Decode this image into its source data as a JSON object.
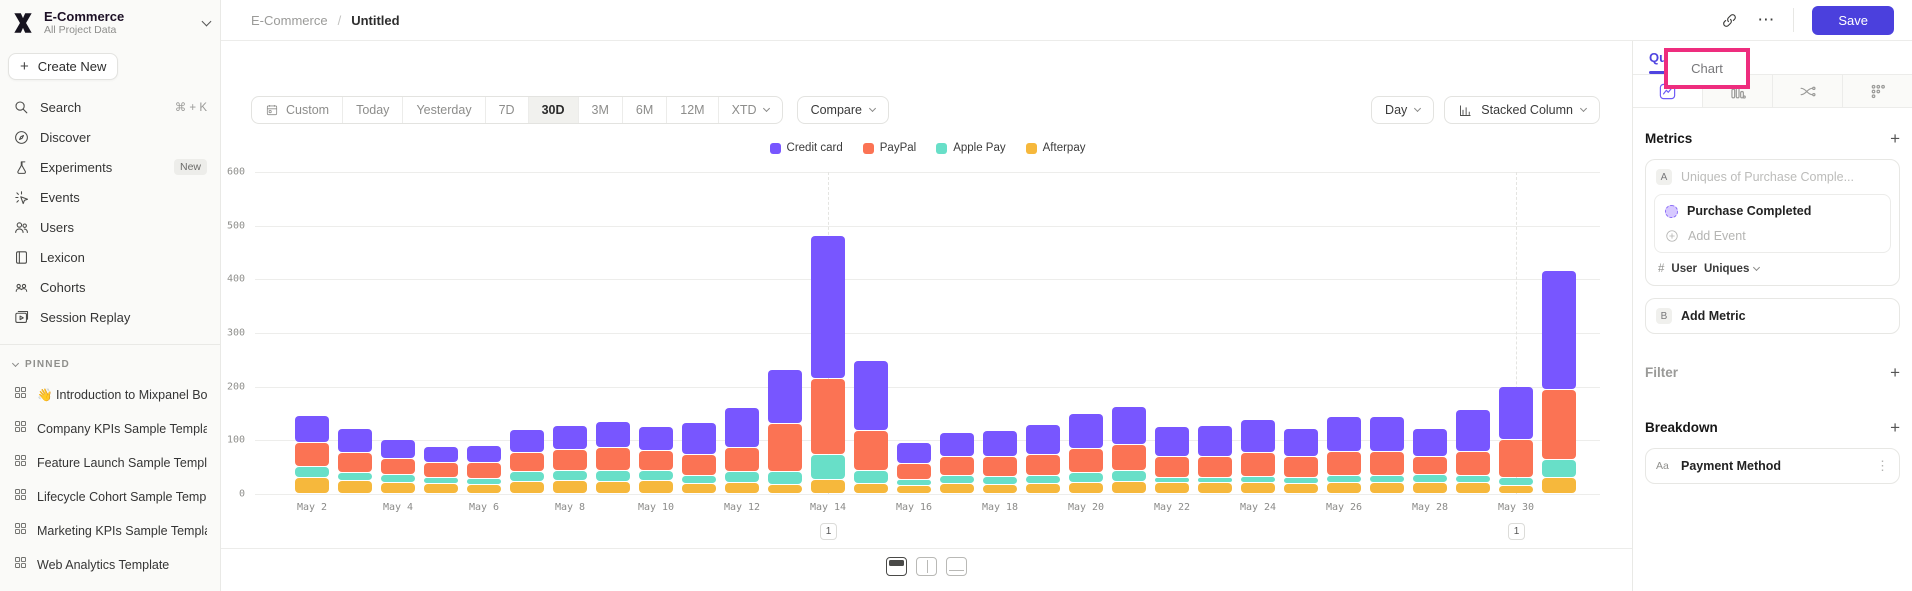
{
  "sidebar": {
    "project_name": "E-Commerce",
    "project_subtitle": "All Project Data",
    "create_new_label": "Create New",
    "nav": [
      {
        "label": "Search",
        "icon": "search-icon",
        "shortcut": "⌘ + K"
      },
      {
        "label": "Discover",
        "icon": "discover-icon"
      },
      {
        "label": "Experiments",
        "icon": "flask-icon",
        "badge": "New"
      },
      {
        "label": "Events",
        "icon": "events-spark-icon"
      },
      {
        "label": "Users",
        "icon": "users-icon"
      },
      {
        "label": "Lexicon",
        "icon": "book-icon"
      },
      {
        "label": "Cohorts",
        "icon": "cohorts-icon"
      },
      {
        "label": "Session Replay",
        "icon": "session-replay-icon"
      }
    ],
    "pinned_label": "PINNED",
    "pinned": [
      "👋 Introduction to Mixpanel Bo",
      "Company KPIs Sample Templat",
      "Feature Launch Sample Templa",
      "Lifecycle Cohort Sample Temp",
      "Marketing KPIs Sample Templat",
      "Web Analytics Template"
    ]
  },
  "header": {
    "breadcrumb_project": "E-Commerce",
    "breadcrumb_separator": "/",
    "breadcrumb_page": "Untitled",
    "save_label": "Save",
    "more_label": "⋯"
  },
  "toolbar": {
    "date_ranges": [
      "Custom",
      "Today",
      "Yesterday",
      "7D",
      "30D",
      "3M",
      "6M",
      "12M",
      "XTD"
    ],
    "active_range": "30D",
    "compare_label": "Compare",
    "granularity_label": "Day",
    "chart_type_label": "Stacked Column"
  },
  "right_panel": {
    "tabs": [
      "Query",
      "Chart"
    ],
    "active_tab": "Query",
    "metrics_title": "Metrics",
    "metric_a_badge": "A",
    "metric_a_placeholder": "Uniques of Purchase Comple...",
    "event_name": "Purchase Completed",
    "add_event_label": "Add Event",
    "agg_hash": "#",
    "agg_entity": "User",
    "agg_type": "Uniques",
    "metric_b_badge": "B",
    "add_metric_label": "Add Metric",
    "filter_title": "Filter",
    "breakdown_title": "Breakdown",
    "breakdown_badge": "Aa",
    "breakdown_property": "Payment Method",
    "accent_color": "#4f44e0",
    "annotation_color": "#ee2d7e"
  },
  "chart_data": {
    "type": "bar",
    "stacked": true,
    "legend_position": "top",
    "grid": true,
    "ylim": [
      0,
      600
    ],
    "yticks": [
      0,
      100,
      200,
      300,
      400,
      500,
      600
    ],
    "categories": [
      "May 2",
      "May 3",
      "May 4",
      "May 5",
      "May 6",
      "May 7",
      "May 8",
      "May 9",
      "May 10",
      "May 11",
      "May 12",
      "May 13",
      "May 14",
      "May 15",
      "May 16",
      "May 17",
      "May 18",
      "May 19",
      "May 20",
      "May 21",
      "May 22",
      "May 23",
      "May 24",
      "May 25",
      "May 26",
      "May 27",
      "May 28",
      "May 29",
      "May 30",
      "May 31"
    ],
    "x_tick_labels": [
      "May 2",
      "May 4",
      "May 6",
      "May 8",
      "May 10",
      "May 12",
      "May 14",
      "May 16",
      "May 18",
      "May 20",
      "May 22",
      "May 24",
      "May 26",
      "May 28",
      "May 30"
    ],
    "series": [
      {
        "name": "Credit card",
        "color": "#7856ff",
        "values": [
          50,
          45,
          35,
          30,
          32,
          42,
          45,
          48,
          44,
          60,
          75,
          100,
          266,
          130,
          40,
          45,
          48,
          55,
          65,
          70,
          55,
          58,
          62,
          52,
          65,
          66,
          52,
          78,
          99,
          221
        ]
      },
      {
        "name": "PayPal",
        "color": "#fb7354",
        "values": [
          45,
          38,
          30,
          28,
          30,
          35,
          40,
          42,
          38,
          40,
          45,
          90,
          141,
          75,
          30,
          35,
          38,
          40,
          45,
          48,
          40,
          40,
          45,
          40,
          45,
          44,
          33,
          45,
          70,
          131
        ]
      },
      {
        "name": "Apple Pay",
        "color": "#68dfc8",
        "values": [
          20,
          15,
          15,
          12,
          12,
          18,
          18,
          20,
          18,
          15,
          20,
          25,
          47,
          25,
          12,
          15,
          15,
          15,
          18,
          20,
          10,
          10,
          12,
          12,
          13,
          13,
          14,
          13,
          15,
          34
        ]
      },
      {
        "name": "Afterpay",
        "color": "#f6b83c",
        "values": [
          30,
          25,
          20,
          18,
          16,
          22,
          24,
          23,
          24,
          18,
          20,
          17,
          26,
          18,
          15,
          18,
          17,
          18,
          20,
          22,
          20,
          20,
          21,
          19,
          20,
          20,
          20,
          21,
          15,
          29
        ]
      }
    ],
    "annotations": [
      {
        "category": "May 14",
        "label": "1"
      },
      {
        "category": "May 30",
        "label": "1"
      }
    ]
  }
}
